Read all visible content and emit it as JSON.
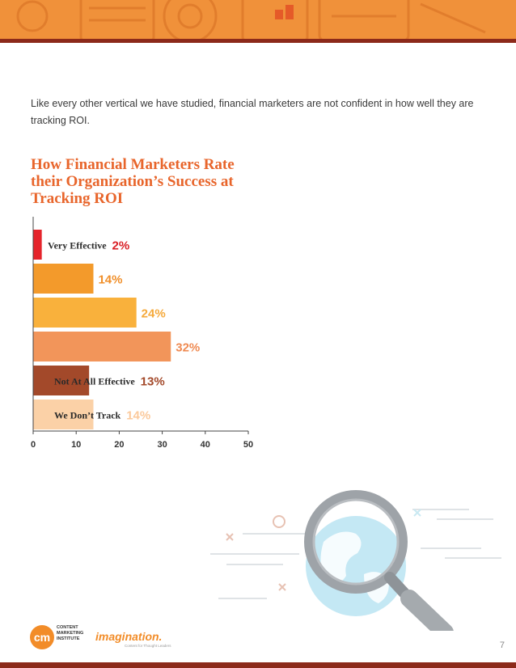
{
  "intro_text": "Like every other vertical we have studied, financial marketers are not confident in how well they are tracking ROI.",
  "page_number": "7",
  "logos": {
    "cmi_lines": [
      "CONTENT",
      "MARKETING",
      "INSTITUTE"
    ],
    "cmi_mark": "cm",
    "imagination": "imagination.",
    "imagination_tagline": "Content for Thought Leaders"
  },
  "icons": [
    "magnifying-glass-icon",
    "globe-icon"
  ],
  "colors": {
    "banner": "#f0913a",
    "banner_line": "#8c2a1a",
    "title": "#e8652b"
  },
  "chart_data": {
    "type": "bar",
    "orientation": "horizontal",
    "title": "How Financial Marketers Rate their Organization’s Success at Tracking ROI",
    "categories": [
      "Very Effective",
      "",
      "",
      "",
      "Not At All Effective",
      "We Don’t Track"
    ],
    "values": [
      2,
      14,
      24,
      32,
      13,
      14
    ],
    "value_labels": [
      "2%",
      "14%",
      "24%",
      "32%",
      "13%",
      "14%"
    ],
    "bar_colors": [
      "#e5242b",
      "#f39a2b",
      "#f9b13c",
      "#f2955a",
      "#a3492a",
      "#fbd1a7"
    ],
    "label_colors": [
      "#d92027",
      "#f08f2a",
      "#f5a93a",
      "#ef8a52",
      "#a3492a",
      "#fbc99b"
    ],
    "xlim": [
      0,
      50
    ],
    "xticks": [
      "0",
      "10",
      "20",
      "30",
      "40",
      "50"
    ],
    "grid": false,
    "legend": "none"
  }
}
